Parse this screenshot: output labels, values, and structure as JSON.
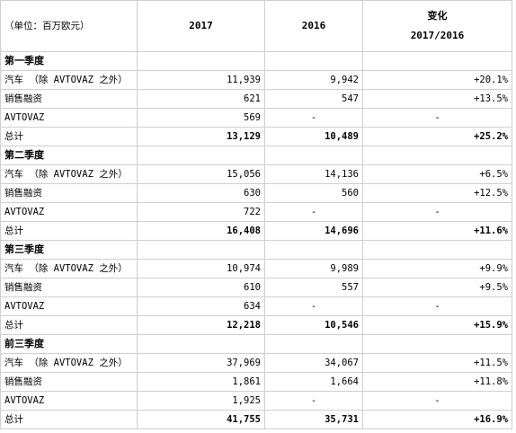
{
  "header": {
    "unit": "（单位：百万欧元）",
    "col_2017": "2017",
    "col_2016": "2016",
    "change_title": "变化",
    "change_sub": "2017/2016"
  },
  "sections": [
    {
      "title": "第一季度",
      "rows": [
        {
          "label": "汽车 （除 AVTOVAZ 之外）",
          "v2017": "11,939",
          "v2016": "9,942",
          "change": "+20.1%"
        },
        {
          "label": "销售融资",
          "v2017": "621",
          "v2016": "547",
          "change": "+13.5%"
        },
        {
          "label": "AVTOVAZ",
          "v2017": "569",
          "v2016": "-",
          "change": "-"
        }
      ],
      "total": {
        "label": "总计",
        "v2017": "13,129",
        "v2016": "10,489",
        "change": "+25.2%"
      }
    },
    {
      "title": "第二季度",
      "rows": [
        {
          "label": "汽车 （除 AVTOVAZ 之外）",
          "v2017": "15,056",
          "v2016": "14,136",
          "change": "+6.5%"
        },
        {
          "label": "销售融资",
          "v2017": "630",
          "v2016": "560",
          "change": "+12.5%"
        },
        {
          "label": "AVTOVAZ",
          "v2017": "722",
          "v2016": "-",
          "change": "-"
        }
      ],
      "total": {
        "label": "总计",
        "v2017": "16,408",
        "v2016": "14,696",
        "change": "+11.6%"
      }
    },
    {
      "title": "第三季度",
      "rows": [
        {
          "label": "汽车 （除 AVTOVAZ 之外）",
          "v2017": "10,974",
          "v2016": "9,989",
          "change": "+9.9%"
        },
        {
          "label": "销售融资",
          "v2017": "610",
          "v2016": "557",
          "change": "+9.5%"
        },
        {
          "label": "AVTOVAZ",
          "v2017": "634",
          "v2016": "-",
          "change": "-"
        }
      ],
      "total": {
        "label": "总计",
        "v2017": "12,218",
        "v2016": "10,546",
        "change": "+15.9%"
      }
    },
    {
      "title": "前三季度",
      "rows": [
        {
          "label": "汽车 （除 AVTOVAZ 之外）",
          "v2017": "37,969",
          "v2016": "34,067",
          "change": "+11.5%"
        },
        {
          "label": "销售融资",
          "v2017": "1,861",
          "v2016": "1,664",
          "change": "+11.8%"
        },
        {
          "label": "AVTOVAZ",
          "v2017": "1,925",
          "v2016": "-",
          "change": "-"
        }
      ],
      "total": {
        "label": "总计",
        "v2017": "41,755",
        "v2016": "35,731",
        "change": "+16.9%"
      }
    }
  ]
}
